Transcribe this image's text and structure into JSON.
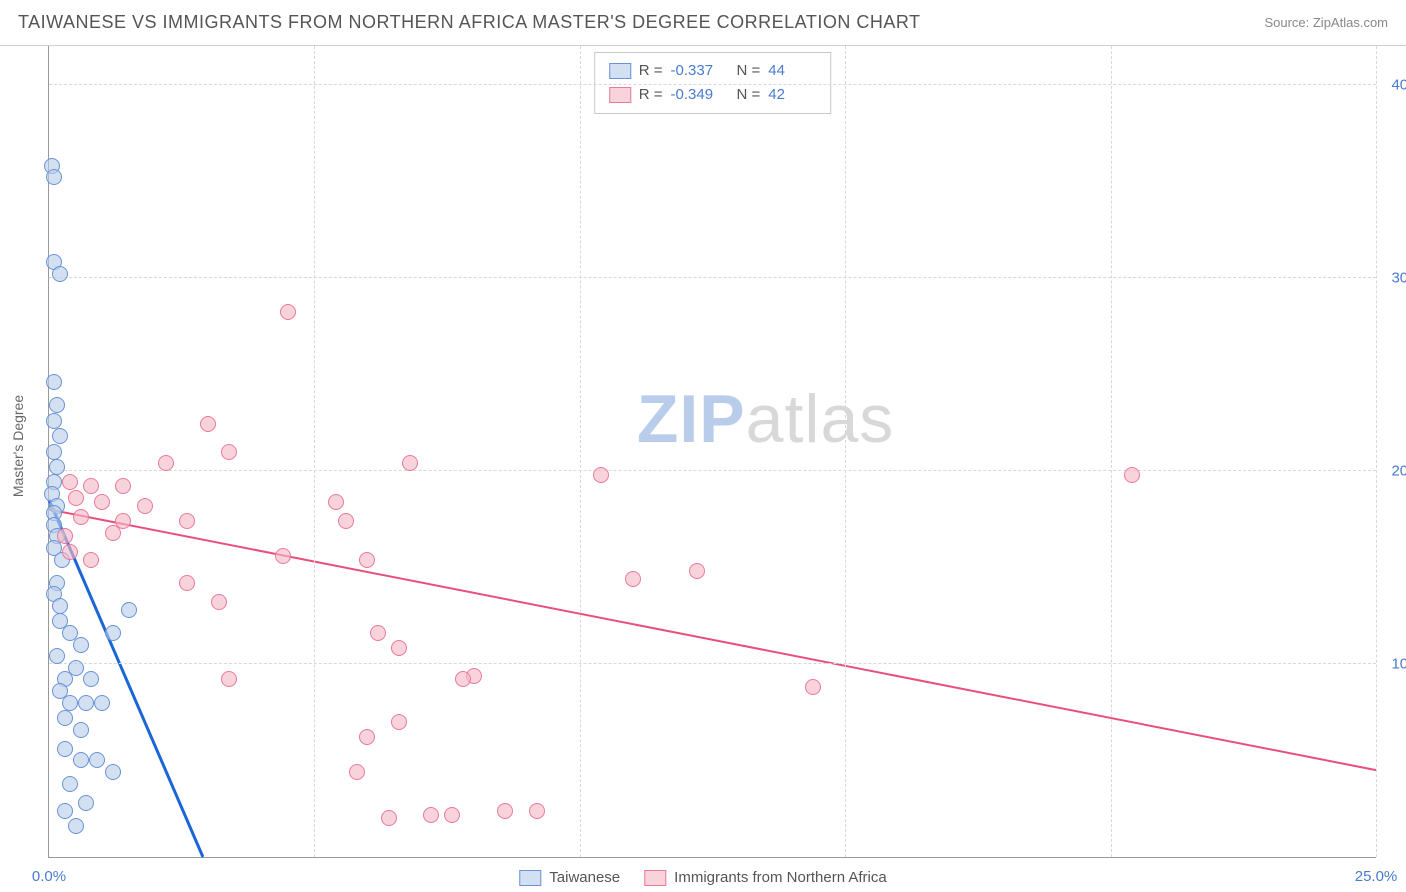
{
  "header": {
    "title": "TAIWANESE VS IMMIGRANTS FROM NORTHERN AFRICA MASTER'S DEGREE CORRELATION CHART",
    "source": "Source: ZipAtlas.com"
  },
  "watermark": {
    "part1": "ZIP",
    "part2": "atlas"
  },
  "chart": {
    "type": "scatter",
    "y_axis_title": "Master's Degree",
    "xlim": [
      0,
      25
    ],
    "ylim": [
      0,
      42
    ],
    "xticks": [
      0,
      25
    ],
    "xtick_labels": [
      "0.0%",
      "25.0%"
    ],
    "yticks": [
      10,
      20,
      30,
      40
    ],
    "ytick_labels": [
      "10.0%",
      "20.0%",
      "30.0%",
      "40.0%"
    ],
    "x_gridlines_at": [
      5,
      10,
      15,
      20,
      25
    ],
    "background_color": "#ffffff",
    "grid_color": "#d8d8d8",
    "axis_color": "#999999",
    "tick_label_color": "#4a7bd0",
    "point_radius": 8,
    "series": [
      {
        "name": "Taiwanese",
        "fill": "#b9cdebA0",
        "stroke": "#6a93d6",
        "trend_color": "#1b66d6",
        "trend_width": 3,
        "stats": {
          "R": "-0.337",
          "N": "44"
        },
        "trend": {
          "x1": 0,
          "y1": 18.5,
          "x2": 2.9,
          "y2": 0
        },
        "points": [
          [
            0.05,
            35.8
          ],
          [
            0.1,
            35.2
          ],
          [
            0.1,
            30.8
          ],
          [
            0.2,
            30.2
          ],
          [
            0.1,
            24.6
          ],
          [
            0.15,
            23.4
          ],
          [
            0.1,
            22.6
          ],
          [
            0.2,
            21.8
          ],
          [
            0.1,
            21.0
          ],
          [
            0.15,
            20.2
          ],
          [
            0.1,
            19.4
          ],
          [
            0.05,
            18.8
          ],
          [
            0.15,
            18.2
          ],
          [
            0.1,
            17.8
          ],
          [
            0.1,
            17.2
          ],
          [
            0.15,
            16.6
          ],
          [
            0.1,
            16.0
          ],
          [
            0.25,
            15.4
          ],
          [
            0.15,
            14.2
          ],
          [
            0.1,
            13.6
          ],
          [
            0.2,
            13.0
          ],
          [
            1.5,
            12.8
          ],
          [
            0.2,
            12.2
          ],
          [
            0.4,
            11.6
          ],
          [
            1.2,
            11.6
          ],
          [
            0.6,
            11.0
          ],
          [
            0.15,
            10.4
          ],
          [
            0.5,
            9.8
          ],
          [
            0.3,
            9.2
          ],
          [
            0.8,
            9.2
          ],
          [
            0.2,
            8.6
          ],
          [
            0.4,
            8.0
          ],
          [
            0.7,
            8.0
          ],
          [
            1.0,
            8.0
          ],
          [
            0.3,
            7.2
          ],
          [
            0.6,
            6.6
          ],
          [
            0.3,
            5.6
          ],
          [
            0.6,
            5.0
          ],
          [
            0.9,
            5.0
          ],
          [
            1.2,
            4.4
          ],
          [
            0.4,
            3.8
          ],
          [
            0.7,
            2.8
          ],
          [
            0.3,
            2.4
          ],
          [
            0.5,
            1.6
          ]
        ]
      },
      {
        "name": "Immigrants from Northern Africa",
        "fill": "#f5b9c8A0",
        "stroke": "#e77a9a",
        "trend_color": "#e94f7c",
        "trend_width": 2,
        "stats": {
          "R": "-0.349",
          "N": "42"
        },
        "trend": {
          "x1": 0,
          "y1": 18.0,
          "x2": 25,
          "y2": 4.5
        },
        "points": [
          [
            4.5,
            28.2
          ],
          [
            3.0,
            22.4
          ],
          [
            3.4,
            21.0
          ],
          [
            2.2,
            20.4
          ],
          [
            6.8,
            20.4
          ],
          [
            10.4,
            19.8
          ],
          [
            20.4,
            19.8
          ],
          [
            0.4,
            19.4
          ],
          [
            0.8,
            19.2
          ],
          [
            1.4,
            19.2
          ],
          [
            0.5,
            18.6
          ],
          [
            1.0,
            18.4
          ],
          [
            1.8,
            18.2
          ],
          [
            5.4,
            18.4
          ],
          [
            0.6,
            17.6
          ],
          [
            1.4,
            17.4
          ],
          [
            2.6,
            17.4
          ],
          [
            5.6,
            17.4
          ],
          [
            0.3,
            16.6
          ],
          [
            1.2,
            16.8
          ],
          [
            0.4,
            15.8
          ],
          [
            0.8,
            15.4
          ],
          [
            4.4,
            15.6
          ],
          [
            6.0,
            15.4
          ],
          [
            11.0,
            14.4
          ],
          [
            12.2,
            14.8
          ],
          [
            2.6,
            14.2
          ],
          [
            3.2,
            13.2
          ],
          [
            6.2,
            11.6
          ],
          [
            6.6,
            10.8
          ],
          [
            8.0,
            9.4
          ],
          [
            3.4,
            9.2
          ],
          [
            7.8,
            9.2
          ],
          [
            14.4,
            8.8
          ],
          [
            6.6,
            7.0
          ],
          [
            6.0,
            6.2
          ],
          [
            5.8,
            4.4
          ],
          [
            8.6,
            2.4
          ],
          [
            9.2,
            2.4
          ],
          [
            7.2,
            2.2
          ],
          [
            7.6,
            2.2
          ],
          [
            6.4,
            2.0
          ]
        ]
      }
    ]
  },
  "stats_box_labels": {
    "R": "R =",
    "N": "N ="
  },
  "legend": {
    "items": [
      "Taiwanese",
      "Immigrants from Northern Africa"
    ]
  }
}
